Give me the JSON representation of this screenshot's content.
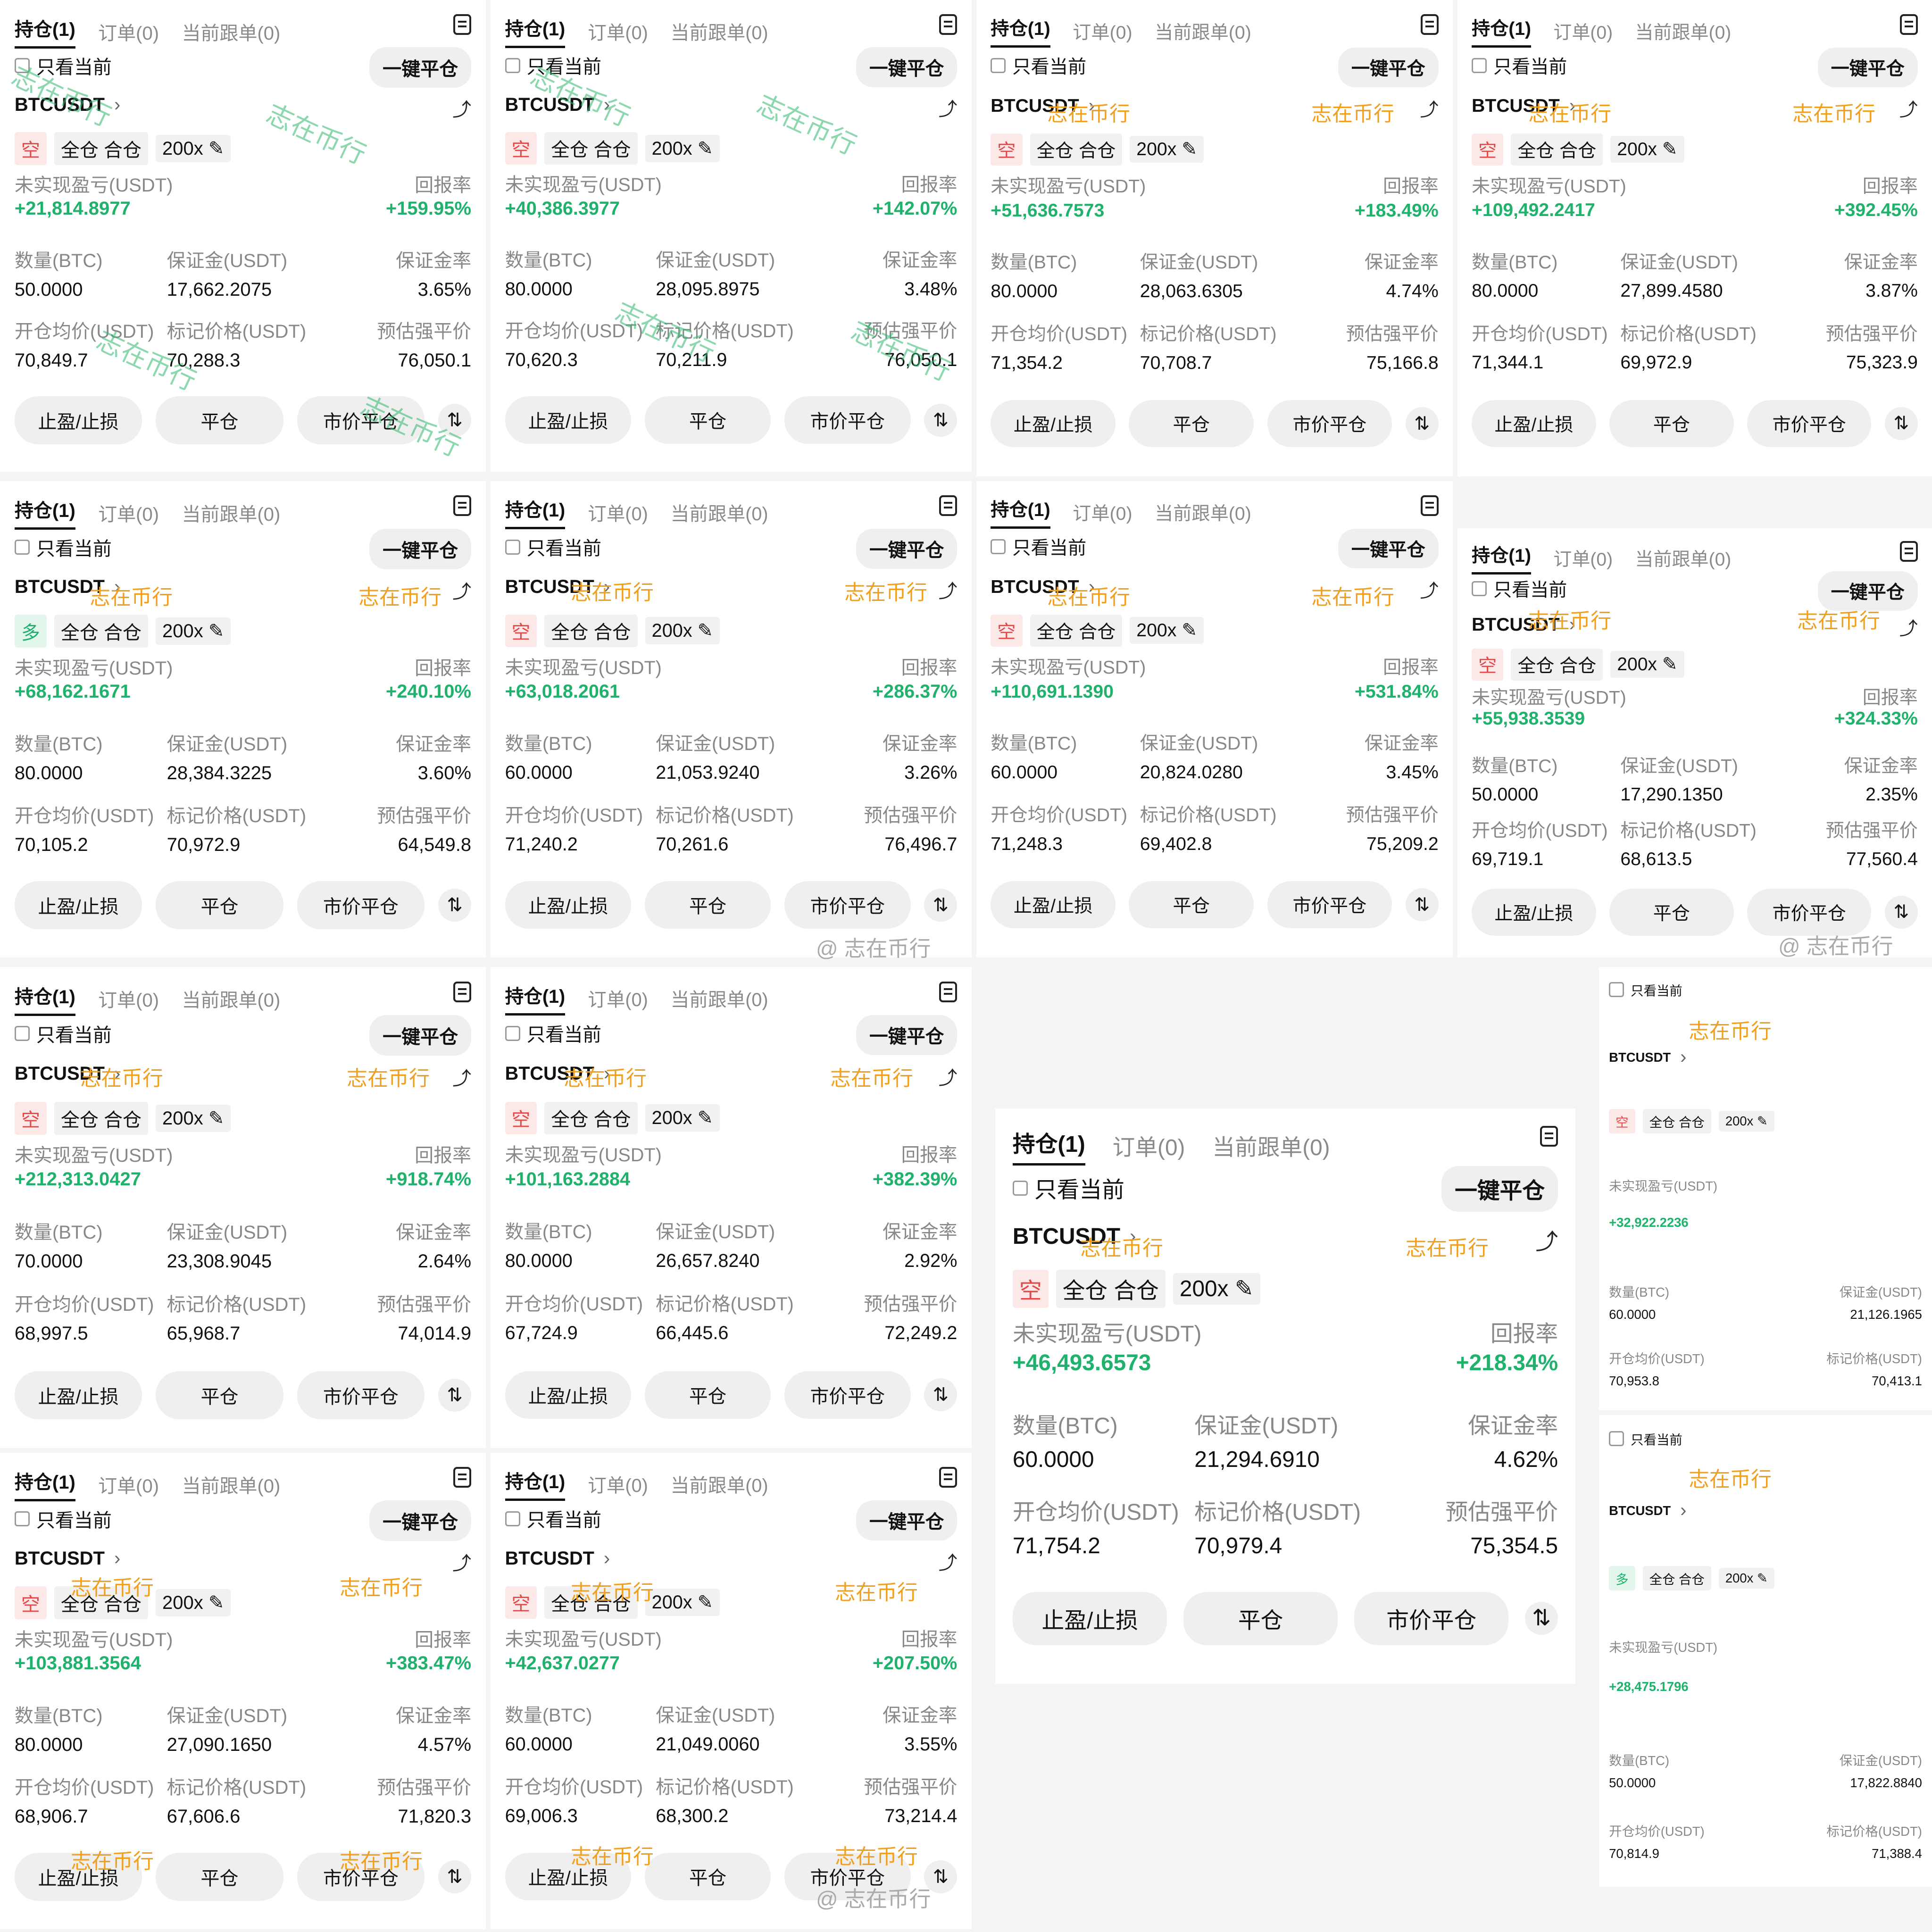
{
  "labels": {
    "tab_positions": "持仓(1)",
    "tab_orders": "订单(0)",
    "tab_copy": "当前跟单(0)",
    "only_current": "只看当前",
    "close_all": "一键平仓",
    "mode": "全仓 合仓",
    "leverage": "200x",
    "pnl_label": "未实现盈亏(USDT)",
    "roi_label": "回报率",
    "qty_label": "数量(BTC)",
    "margin_label": "保证金(USDT)",
    "margin_rate_label": "保证金率",
    "entry_label": "开仓均价(USDT)",
    "mark_label": "标记价格(USDT)",
    "liq_label": "预估强平价",
    "btn_tpsl": "止盈/止损",
    "btn_close": "平仓",
    "btn_market_close": "市价平仓",
    "watermark": "志在币行",
    "weibo": "@ 志在币行"
  },
  "cards": [
    {
      "symbol": "BTCUSDT",
      "dir": "空",
      "pnl": "+21,814.8977",
      "roi": "+159.95%",
      "qty": "50.0000",
      "margin": "17,662.2075",
      "mrate": "3.65%",
      "entry": "70,849.7",
      "mark": "70,288.3",
      "liq": "76,050.1"
    },
    {
      "symbol": "BTCUSDT",
      "dir": "空",
      "pnl": "+40,386.3977",
      "roi": "+142.07%",
      "qty": "80.0000",
      "margin": "28,095.8975",
      "mrate": "3.48%",
      "entry": "70,620.3",
      "mark": "70,211.9",
      "liq": "76,050.1"
    },
    {
      "symbol": "BTCUSDT",
      "dir": "空",
      "pnl": "+51,636.7573",
      "roi": "+183.49%",
      "qty": "80.0000",
      "margin": "28,063.6305",
      "mrate": "4.74%",
      "entry": "71,354.2",
      "mark": "70,708.7",
      "liq": "75,166.8"
    },
    {
      "symbol": "BTCUSDT",
      "dir": "空",
      "pnl": "+109,492.2417",
      "roi": "+392.45%",
      "qty": "80.0000",
      "margin": "27,899.4580",
      "mrate": "3.87%",
      "entry": "71,344.1",
      "mark": "69,972.9",
      "liq": "75,323.9"
    },
    {
      "symbol": "BTCUSDT",
      "dir": "多",
      "pnl": "+68,162.1671",
      "roi": "+240.10%",
      "qty": "80.0000",
      "margin": "28,384.3225",
      "mrate": "3.60%",
      "entry": "70,105.2",
      "mark": "70,972.9",
      "liq": "64,549.8"
    },
    {
      "symbol": "BTCUSDT",
      "dir": "空",
      "pnl": "+63,018.2061",
      "roi": "+286.37%",
      "qty": "60.0000",
      "margin": "21,053.9240",
      "mrate": "3.26%",
      "entry": "71,240.2",
      "mark": "70,261.6",
      "liq": "76,496.7"
    },
    {
      "symbol": "BTCUSDT",
      "dir": "空",
      "pnl": "+110,691.1390",
      "roi": "+531.84%",
      "qty": "60.0000",
      "margin": "20,824.0280",
      "mrate": "3.45%",
      "entry": "71,248.3",
      "mark": "69,402.8",
      "liq": "75,209.2"
    },
    {
      "symbol": "BTCUSDT",
      "dir": "空",
      "pnl": "+55,938.3539",
      "roi": "+324.33%",
      "qty": "50.0000",
      "margin": "17,290.1350",
      "mrate": "2.35%",
      "entry": "69,719.1",
      "mark": "68,613.5",
      "liq": "77,560.4"
    },
    {
      "symbol": "BTCUSDT",
      "dir": "空",
      "pnl": "+212,313.0427",
      "roi": "+918.74%",
      "qty": "70.0000",
      "margin": "23,308.9045",
      "mrate": "2.64%",
      "entry": "68,997.5",
      "mark": "65,968.7",
      "liq": "74,014.9"
    },
    {
      "symbol": "BTCUSDT",
      "dir": "空",
      "pnl": "+101,163.2884",
      "roi": "+382.39%",
      "qty": "80.0000",
      "margin": "26,657.8240",
      "mrate": "2.92%",
      "entry": "67,724.9",
      "mark": "66,445.6",
      "liq": "72,249.2"
    },
    {
      "symbol": "BTCUSDT",
      "dir": "空",
      "pnl": "+46,493.6573",
      "roi": "+218.34%",
      "qty": "60.0000",
      "margin": "21,294.6910",
      "mrate": "4.62%",
      "entry": "71,754.2",
      "mark": "70,979.4",
      "liq": "75,354.5"
    },
    {
      "symbol": "BTCUSDT",
      "dir": "空",
      "pnl": "+103,881.3564",
      "roi": "+383.47%",
      "qty": "80.0000",
      "margin": "27,090.1650",
      "mrate": "4.57%",
      "entry": "68,906.7",
      "mark": "67,606.6",
      "liq": "71,820.3"
    },
    {
      "symbol": "BTCUSDT",
      "dir": "空",
      "pnl": "+42,637.0277",
      "roi": "+207.50%",
      "qty": "60.0000",
      "margin": "21,049.0060",
      "mrate": "3.55%",
      "entry": "69,006.3",
      "mark": "68,300.2",
      "liq": "73,214.4"
    }
  ],
  "partials": [
    {
      "symbol": "BTCUSDT",
      "dir": "空",
      "pnl": "+32,922.2236",
      "qty": "60.0000",
      "margin": "21,126.1965",
      "entry": "70,953.8",
      "mark": "70,413.1"
    },
    {
      "symbol": "BTCUSDT",
      "dir": "多",
      "pnl": "+28,475.1796",
      "qty": "50.0000",
      "margin": "17,822.8840",
      "entry": "70,814.9",
      "mark": "71,388.4"
    }
  ]
}
